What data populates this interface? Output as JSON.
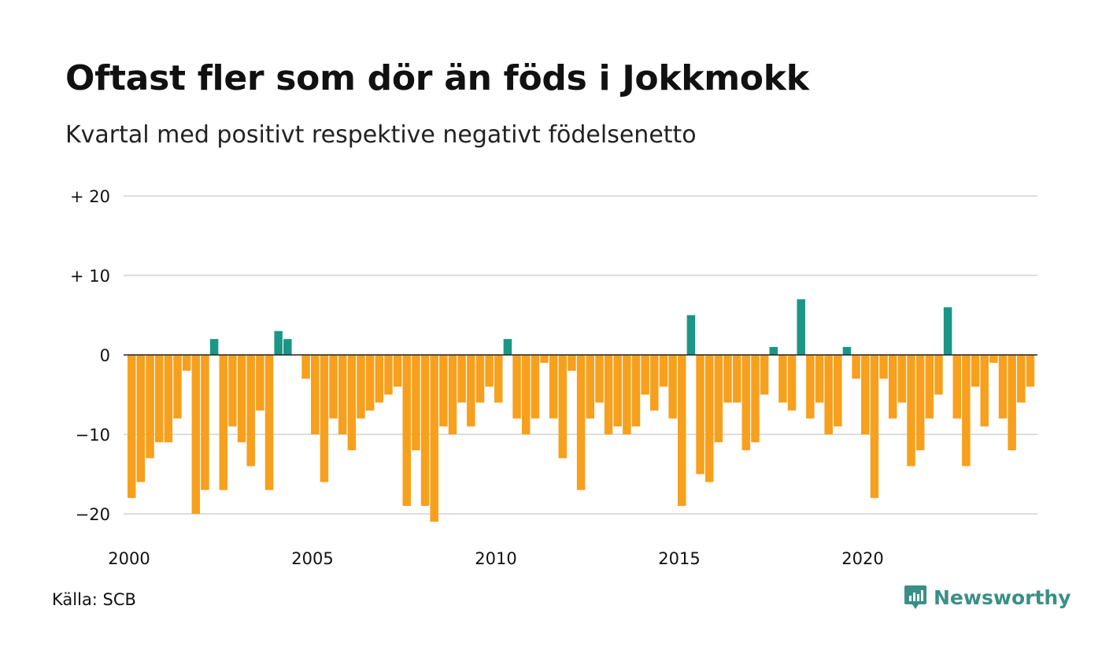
{
  "title": "Oftast fler som dör än föds i Jokkmokk",
  "subtitle": "Kvartal med positivt respektive negativt födelsenetto",
  "source": "Källa: SCB",
  "brand": "Newsworthy",
  "colors": {
    "positive": "#1a9687",
    "negative": "#f7a01d",
    "grid": "#dddddd",
    "zero": "#222222",
    "brand": "#3a8f87"
  },
  "chart_data": {
    "type": "bar",
    "title": "Oftast fler som dör än föds i Jokkmokk",
    "subtitle": "Kvartal med positivt respektive negativt födelsenetto",
    "xlabel": "",
    "ylabel": "",
    "ylim": [
      -23,
      21
    ],
    "y_ticks": [
      20,
      10,
      0,
      -10,
      -20
    ],
    "y_tick_labels": [
      "+ 20",
      "+ 10",
      "0",
      "−10",
      "−20"
    ],
    "x_ticks": [
      "2000",
      "2005",
      "2010",
      "2015",
      "2020"
    ],
    "grid": true,
    "start": "2000 Q1",
    "frequency": "quarterly",
    "values": [
      -18,
      -16,
      -13,
      -11,
      -11,
      -8,
      -2,
      -20,
      -17,
      2,
      -17,
      -9,
      -11,
      -14,
      -7,
      -17,
      3,
      2,
      0,
      -3,
      -10,
      -16,
      -8,
      -10,
      -12,
      -8,
      -7,
      -6,
      -5,
      -4,
      -19,
      -12,
      -19,
      -21,
      -9,
      -10,
      -6,
      -9,
      -6,
      -4,
      -6,
      2,
      -8,
      -10,
      -8,
      -1,
      -8,
      -13,
      -2,
      -17,
      -8,
      -6,
      -10,
      -9,
      -10,
      -9,
      -5,
      -7,
      -4,
      -8,
      -19,
      5,
      -15,
      -16,
      -11,
      -6,
      -6,
      -12,
      -11,
      -5,
      1,
      -6,
      -7,
      7,
      -8,
      -6,
      -10,
      -9,
      1,
      -3,
      -10,
      -18,
      -3,
      -8,
      -6,
      -14,
      -12,
      -8,
      -5,
      6,
      -8,
      -14,
      -4,
      -9,
      -1,
      -8,
      -12,
      -6,
      -4
    ]
  }
}
